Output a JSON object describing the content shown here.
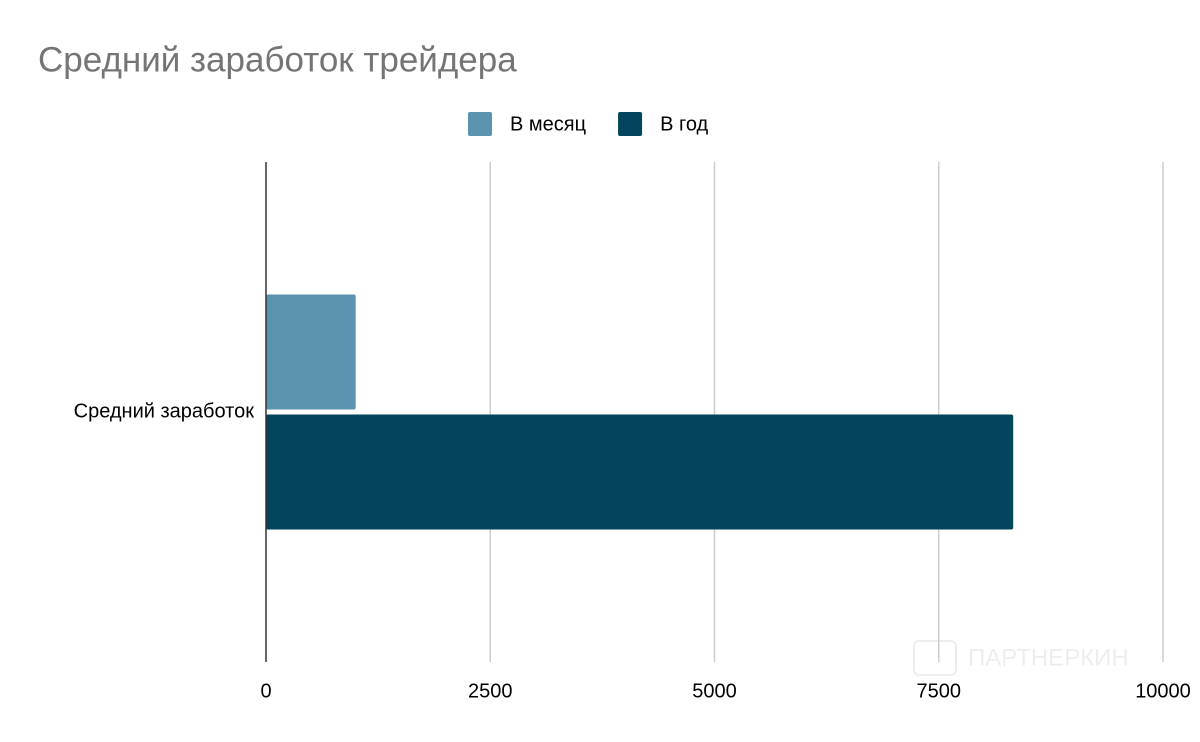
{
  "chart_data": {
    "type": "hbar",
    "title": "Средний заработок трейдера",
    "categories": [
      "Средний заработок"
    ],
    "series": [
      {
        "name": "В месяц",
        "color": "#5b93b0",
        "values": [
          1000
        ]
      },
      {
        "name": "В год",
        "color": "#03445e",
        "values": [
          8330
        ]
      }
    ],
    "xlim": [
      0,
      10000
    ],
    "xticks": [
      0,
      2500,
      5000,
      7500,
      10000
    ],
    "grid": true,
    "legend": "top",
    "watermark": "ПАРТНЕРКИН"
  }
}
